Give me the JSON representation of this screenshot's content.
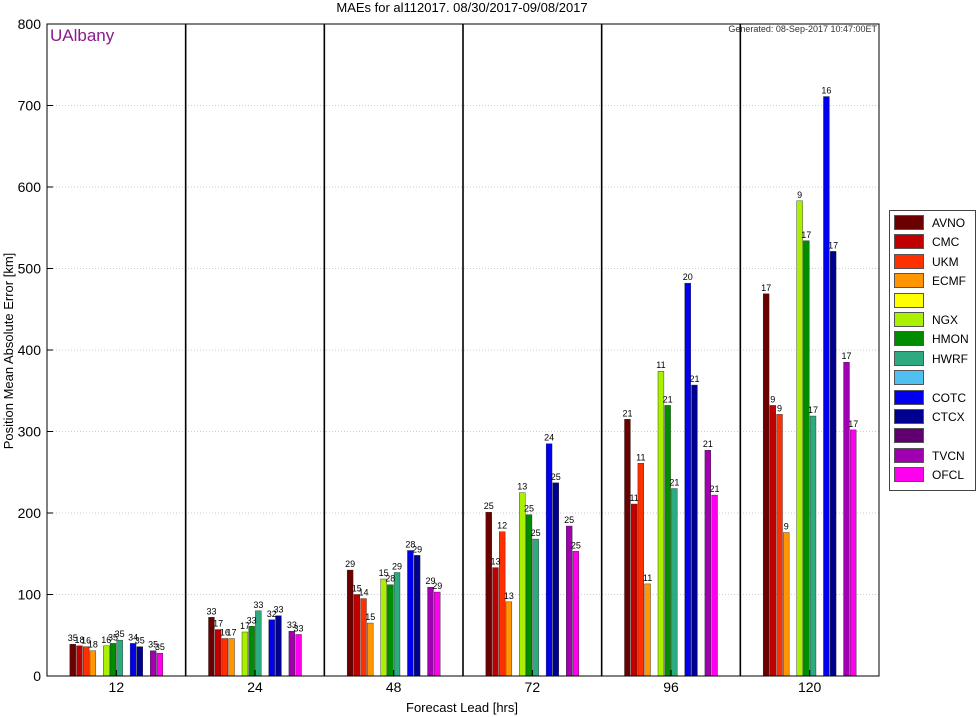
{
  "header": {
    "watermark": "UAlbany",
    "generated": "Generated: 08-Sep-2017 10:47:00ET"
  },
  "chart_data": {
    "type": "bar",
    "title": "MAEs for al112017. 08/30/2017-09/08/2017",
    "xlabel": "Forecast Lead [hrs]",
    "ylabel": "Position Mean Absolute Error [km]",
    "ylim": [
      0,
      800
    ],
    "yticks": [
      0,
      100,
      200,
      300,
      400,
      500,
      600,
      700,
      800
    ],
    "grid": true,
    "legend_position": "right",
    "categories": [
      "12",
      "24",
      "48",
      "72",
      "96",
      "120"
    ],
    "series": [
      {
        "name": "AVNO",
        "color": "#6b0000",
        "values": [
          39,
          72,
          130,
          201,
          315,
          469
        ],
        "counts": [
          35,
          33,
          29,
          25,
          21,
          17
        ]
      },
      {
        "name": "CMC",
        "color": "#c00000",
        "values": [
          37,
          57,
          100,
          133,
          211,
          332
        ],
        "counts": [
          18,
          17,
          15,
          13,
          11,
          9
        ]
      },
      {
        "name": "UKM",
        "color": "#ff3000",
        "values": [
          36,
          46,
          95,
          177,
          261,
          321
        ],
        "counts": [
          16,
          16,
          14,
          12,
          11,
          9
        ]
      },
      {
        "name": "ECMF",
        "color": "#ff9500",
        "values": [
          31,
          46,
          65,
          91,
          113,
          176
        ],
        "counts": [
          18,
          17,
          15,
          13,
          11,
          9
        ]
      },
      {
        "name": "",
        "color": "#ffff00",
        "values": [
          null,
          null,
          null,
          null,
          null,
          null
        ],
        "counts": [
          null,
          null,
          null,
          null,
          null,
          null
        ]
      },
      {
        "name": "NGX",
        "color": "#aaf000",
        "values": [
          37,
          54,
          119,
          225,
          374,
          583
        ],
        "counts": [
          16,
          17,
          15,
          13,
          11,
          9
        ]
      },
      {
        "name": "HMON",
        "color": "#008c00",
        "values": [
          40,
          61,
          112,
          198,
          332,
          534
        ],
        "counts": [
          35,
          33,
          28,
          25,
          21,
          17
        ]
      },
      {
        "name": "HWRF",
        "color": "#2daa80",
        "values": [
          44,
          80,
          127,
          168,
          230,
          319
        ],
        "counts": [
          35,
          33,
          29,
          25,
          21,
          17
        ]
      },
      {
        "name": "",
        "color": "#50c0f0",
        "values": [
          null,
          null,
          null,
          null,
          null,
          null
        ],
        "counts": [
          null,
          null,
          null,
          null,
          null,
          null
        ]
      },
      {
        "name": "COTC",
        "color": "#0000ee",
        "values": [
          40,
          69,
          154,
          285,
          482,
          711
        ],
        "counts": [
          34,
          32,
          28,
          24,
          20,
          16
        ]
      },
      {
        "name": "CTCX",
        "color": "#000090",
        "values": [
          36,
          74,
          148,
          237,
          357,
          521
        ],
        "counts": [
          35,
          33,
          29,
          25,
          21,
          17
        ]
      },
      {
        "name": "",
        "color": "#600070",
        "values": [
          null,
          null,
          null,
          null,
          null,
          null
        ],
        "counts": [
          null,
          null,
          null,
          null,
          null,
          null
        ]
      },
      {
        "name": "TVCN",
        "color": "#a000b0",
        "values": [
          31,
          55,
          109,
          184,
          277,
          385
        ],
        "counts": [
          35,
          33,
          29,
          25,
          21,
          17
        ]
      },
      {
        "name": "OFCL",
        "color": "#ff00ee",
        "values": [
          28,
          51,
          103,
          153,
          222,
          302
        ],
        "counts": [
          35,
          33,
          29,
          25,
          21,
          17
        ]
      }
    ]
  }
}
